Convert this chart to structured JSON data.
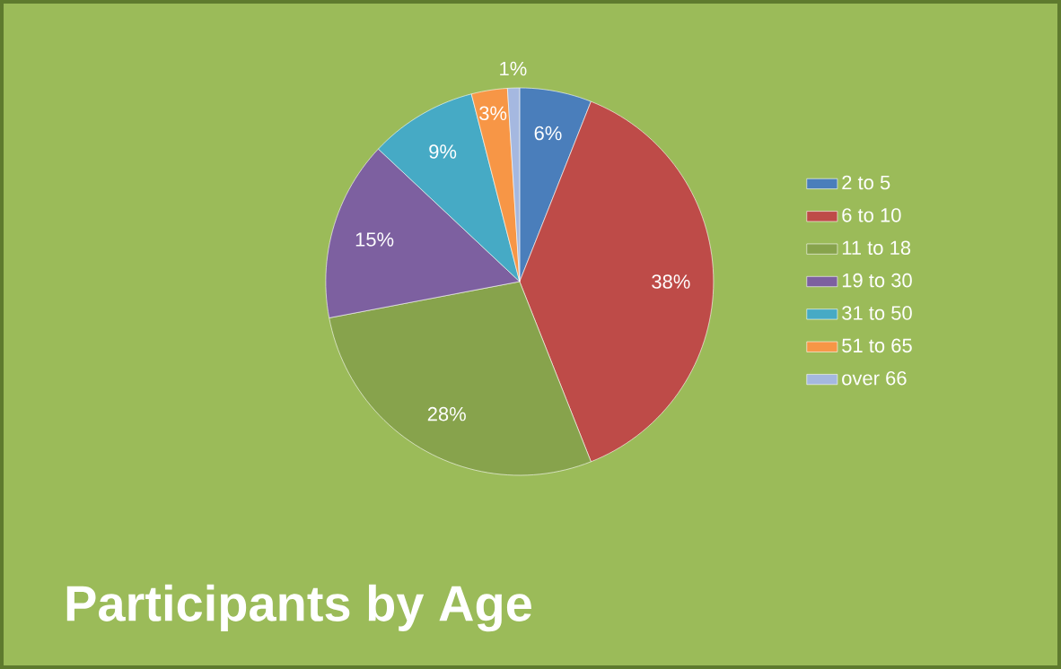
{
  "chart_data": {
    "type": "pie",
    "title": "Participants by Age",
    "categories": [
      "2 to 5",
      "6 to 10",
      "11 to 18",
      "19 to 30",
      "31 to 50",
      "51 to 65",
      "over 66"
    ],
    "values": [
      6,
      38,
      28,
      15,
      9,
      3,
      1
    ],
    "value_labels": [
      "6%",
      "38%",
      "28%",
      "15%",
      "9%",
      "3%",
      "1%"
    ],
    "colors": [
      "#4a7ebb",
      "#be4b48",
      "#87a34c",
      "#7d60a0",
      "#46aac5",
      "#f79646",
      "#a5b8e0"
    ],
    "legend": "right"
  }
}
